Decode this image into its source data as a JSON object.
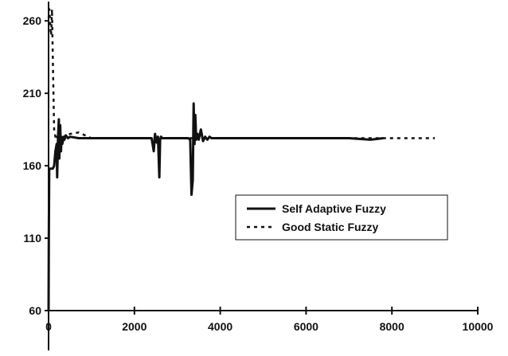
{
  "chart_data": {
    "type": "line",
    "title": "",
    "xlabel": "",
    "ylabel": "",
    "xlim": [
      0,
      10000
    ],
    "ylim": [
      60,
      270
    ],
    "x_ticks": [
      0,
      2000,
      4000,
      6000,
      8000,
      10000
    ],
    "y_ticks": [
      60,
      110,
      160,
      210,
      260
    ],
    "x_tick_labels": [
      "0",
      "2000",
      "4000",
      "6000",
      "8000",
      "10000"
    ],
    "y_tick_labels": [
      "60",
      "110",
      "160",
      "210",
      "260"
    ],
    "grid": false,
    "legend_position": "center-right",
    "series": [
      {
        "name": "Self Adaptive Fuzzy",
        "style": "solid",
        "color": "#111111",
        "x": [
          0,
          5,
          15,
          30,
          50,
          70,
          100,
          130,
          160,
          190,
          200,
          220,
          240,
          250,
          270,
          290,
          300,
          320,
          350,
          370,
          400,
          450,
          500,
          700,
          1000,
          1500,
          2000,
          2400,
          2450,
          2480,
          2520,
          2550,
          2580,
          2600,
          2620,
          2650,
          2700,
          3000,
          3250,
          3300,
          3330,
          3360,
          3380,
          3400,
          3420,
          3440,
          3470,
          3500,
          3550,
          3600,
          3650,
          3700,
          3750,
          3800,
          3900,
          4000,
          5000,
          6000,
          7000,
          7500,
          7800
        ],
        "y": [
          60,
          110,
          158,
          158,
          158,
          158,
          158,
          160,
          170,
          175,
          152,
          180,
          192,
          165,
          188,
          170,
          180,
          175,
          179,
          178,
          181,
          179,
          180,
          179,
          179,
          179,
          179,
          179,
          170,
          182,
          176,
          180,
          152,
          178,
          180,
          179,
          179,
          179,
          179,
          178,
          140,
          150,
          203,
          175,
          195,
          178,
          182,
          178,
          185,
          177,
          180,
          178,
          180,
          179,
          179,
          179,
          179,
          179,
          179,
          178,
          179
        ]
      },
      {
        "name": "Good Static Fuzzy",
        "style": "dashed",
        "color": "#111111",
        "x": [
          0,
          20,
          40,
          60,
          80,
          100,
          130,
          170,
          200,
          260,
          350,
          500,
          700,
          1000,
          2000,
          4000,
          6000,
          8000,
          9000
        ],
        "y": [
          262,
          268,
          255,
          250,
          268,
          232,
          185,
          178,
          180,
          179,
          180,
          182,
          183,
          179,
          179,
          179,
          179,
          179,
          179
        ]
      }
    ]
  }
}
